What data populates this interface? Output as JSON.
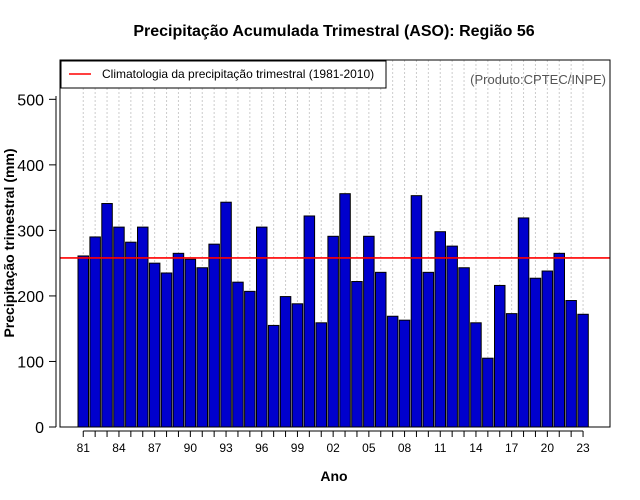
{
  "chart_data": {
    "type": "bar",
    "title": "Precipitação Acumulada Trimestral (ASO): Região 56",
    "xlabel": "Ano",
    "ylabel": "Precipitação trimestral (mm)",
    "ylim": [
      0,
      560
    ],
    "yticks": [
      0,
      100,
      200,
      300,
      400,
      500
    ],
    "grid": "vertical dotted lines",
    "years": [
      1981,
      1982,
      1983,
      1984,
      1985,
      1986,
      1987,
      1988,
      1989,
      1990,
      1991,
      1992,
      1993,
      1994,
      1995,
      1996,
      1997,
      1998,
      1999,
      2000,
      2001,
      2002,
      2003,
      2004,
      2005,
      2006,
      2007,
      2008,
      2009,
      2010,
      2011,
      2012,
      2013,
      2014,
      2015,
      2016,
      2017,
      2018,
      2019,
      2020,
      2021,
      2022,
      2023
    ],
    "categories": [
      "81",
      "82",
      "83",
      "84",
      "85",
      "86",
      "87",
      "88",
      "89",
      "90",
      "91",
      "92",
      "93",
      "94",
      "95",
      "96",
      "97",
      "98",
      "99",
      "00",
      "01",
      "02",
      "03",
      "04",
      "05",
      "06",
      "07",
      "08",
      "09",
      "10",
      "11",
      "12",
      "13",
      "14",
      "15",
      "16",
      "17",
      "18",
      "19",
      "20",
      "21",
      "22",
      "23"
    ],
    "xtick_labels": [
      "81",
      "84",
      "87",
      "90",
      "93",
      "96",
      "99",
      "02",
      "05",
      "08",
      "11",
      "14",
      "17",
      "20",
      "23"
    ],
    "values": [
      261,
      290,
      341,
      305,
      282,
      305,
      250,
      235,
      265,
      256,
      243,
      279,
      343,
      221,
      207,
      305,
      155,
      199,
      188,
      322,
      159,
      291,
      356,
      222,
      291,
      236,
      169,
      163,
      353,
      236,
      298,
      276,
      243,
      159,
      105,
      216,
      173,
      319,
      227,
      238,
      265,
      193,
      172
    ],
    "bar_color": "#0000CD",
    "climatology": {
      "value": 258,
      "label": "Climatologia da precipitação trimestral (1981-2010)",
      "color": "#FF0000"
    },
    "legend_position": "top-left",
    "credit": "(Produto:CPTEC/INPE)"
  }
}
